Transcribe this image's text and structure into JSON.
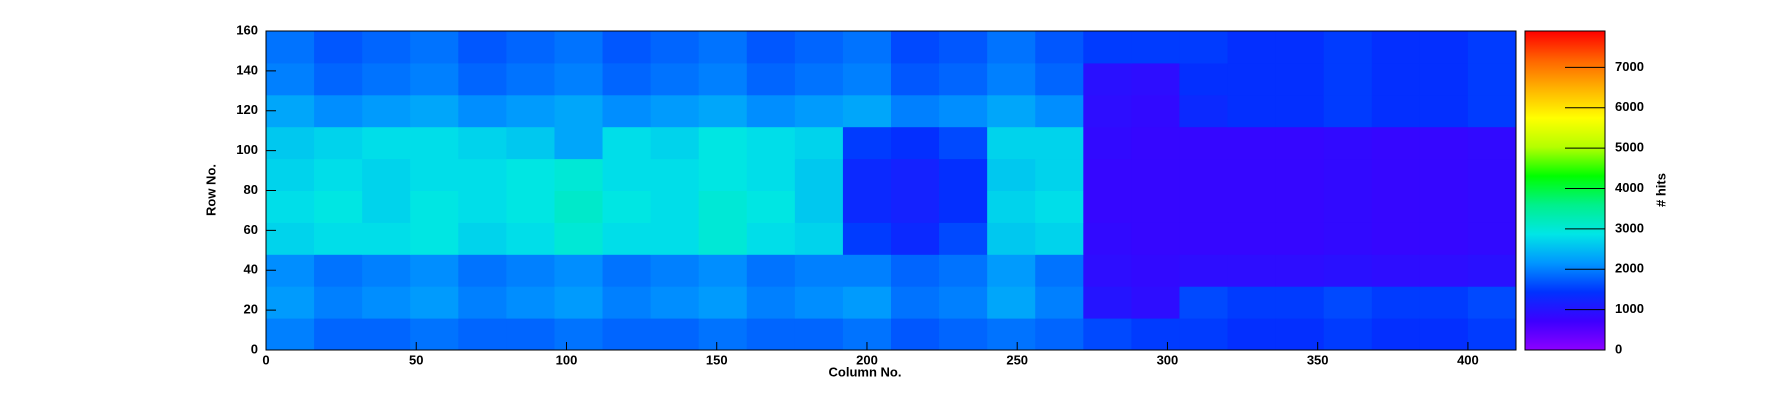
{
  "chart_data": {
    "type": "heatmap",
    "x_label": "Column No.",
    "y_label": "Row No.",
    "z_label": "# hits",
    "xbins": [
      0,
      16,
      32,
      48,
      64,
      80,
      96,
      112,
      128,
      144,
      160,
      176,
      192,
      208,
      224,
      240,
      256,
      272,
      288,
      304,
      320,
      336,
      352,
      368,
      384,
      400,
      416
    ],
    "ybins": [
      0,
      16,
      32,
      48,
      64,
      80,
      96,
      112,
      128,
      144,
      160
    ],
    "z": [
      [
        2000,
        1800,
        1800,
        1900,
        1800,
        1800,
        1900,
        1800,
        1800,
        1900,
        1800,
        1800,
        1900,
        1700,
        1800,
        1900,
        1800,
        1600,
        1500,
        1500,
        1400,
        1400,
        1500,
        1400,
        1400,
        1500
      ],
      [
        2200,
        2000,
        2100,
        2200,
        2000,
        2100,
        2200,
        2000,
        2100,
        2200,
        2000,
        2100,
        2200,
        1900,
        2000,
        2300,
        2000,
        1000,
        900,
        1600,
        1500,
        1500,
        1600,
        1500,
        1500,
        1600
      ],
      [
        2100,
        1900,
        2000,
        2100,
        1900,
        2000,
        2100,
        1900,
        2000,
        2100,
        1900,
        2000,
        2000,
        1800,
        1900,
        2200,
        1900,
        900,
        850,
        900,
        900,
        900,
        950,
        900,
        900,
        950
      ],
      [
        2700,
        2800,
        2800,
        2900,
        2700,
        2800,
        3000,
        2800,
        2800,
        3000,
        2800,
        2700,
        1500,
        1300,
        1600,
        2600,
        2700,
        850,
        800,
        800,
        800,
        800,
        850,
        800,
        800,
        850
      ],
      [
        2800,
        2900,
        2700,
        2900,
        2800,
        2900,
        3100,
        2900,
        2800,
        3000,
        2900,
        2600,
        1300,
        1200,
        1400,
        2700,
        2800,
        800,
        800,
        800,
        800,
        800,
        850,
        800,
        800,
        850
      ],
      [
        2700,
        2800,
        2700,
        2800,
        2800,
        2900,
        3000,
        2800,
        2800,
        2900,
        2800,
        2600,
        1300,
        1200,
        1400,
        2600,
        2700,
        800,
        800,
        800,
        800,
        800,
        850,
        800,
        800,
        850
      ],
      [
        2600,
        2700,
        2800,
        2800,
        2700,
        2600,
        2300,
        2800,
        2700,
        2900,
        2800,
        2700,
        1500,
        1400,
        1600,
        2700,
        2700,
        850,
        800,
        800,
        800,
        800,
        850,
        800,
        800,
        850
      ],
      [
        2300,
        2100,
        2200,
        2300,
        2100,
        2200,
        2300,
        2100,
        2200,
        2300,
        2100,
        2200,
        2300,
        2000,
        2100,
        2300,
        2100,
        900,
        850,
        1300,
        1400,
        1400,
        1500,
        1400,
        1400,
        1500
      ],
      [
        2000,
        1800,
        1900,
        2000,
        1800,
        1900,
        2000,
        1800,
        1900,
        2000,
        1800,
        1900,
        2000,
        1700,
        1800,
        2000,
        1800,
        950,
        900,
        1400,
        1400,
        1400,
        1500,
        1400,
        1400,
        1500
      ],
      [
        1900,
        1700,
        1800,
        1900,
        1700,
        1800,
        1900,
        1700,
        1800,
        1900,
        1700,
        1800,
        1900,
        1600,
        1700,
        1900,
        1700,
        1500,
        1500,
        1500,
        1400,
        1400,
        1500,
        1400,
        1400,
        1500
      ]
    ],
    "xlim": [
      0,
      416
    ],
    "xticks": [
      0,
      50,
      100,
      150,
      200,
      250,
      300,
      350,
      400
    ],
    "ylim": [
      0,
      160
    ],
    "yticks": [
      0,
      20,
      40,
      60,
      80,
      100,
      120,
      140,
      160
    ],
    "zlim": [
      0,
      7900
    ],
    "zticks": [
      0,
      1000,
      2000,
      3000,
      4000,
      5000,
      6000,
      7000
    ],
    "colors": [
      "#8c00ff",
      "#3c00ff",
      "#0032ff",
      "#0096ff",
      "#00e6e6",
      "#00f08c",
      "#00ff00",
      "#b4ff00",
      "#ffff00",
      "#ffb400",
      "#ff6400",
      "#ff0000"
    ]
  }
}
